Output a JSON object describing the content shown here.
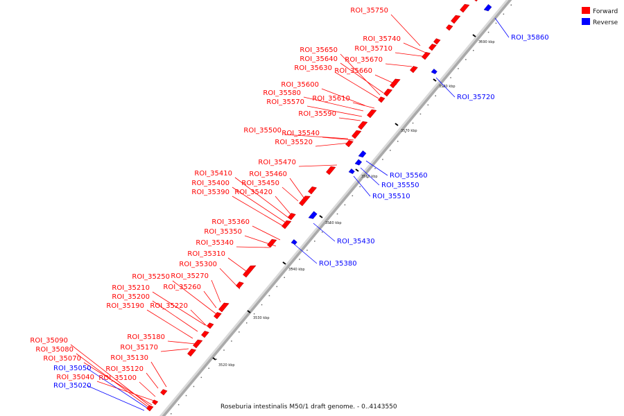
{
  "caption": "Roseburia intestinalis M50/1 draft genome. - 0..4143550",
  "legend": {
    "forward": {
      "label": "Forward",
      "color": "#ff0000"
    },
    "reverse": {
      "label": "Reverse",
      "color": "#0000ff"
    }
  },
  "ticks": [
    "3520 kbp",
    "3530 kbp",
    "3540 kbp",
    "3550 kbp",
    "3560 kbp",
    "3570 kbp",
    "3580 kbp",
    "3590 kbp"
  ],
  "forward_labels": [
    "ROI_35750",
    "ROI_35740",
    "ROI_35710",
    "ROI_35650",
    "ROI_35640",
    "ROI_35670",
    "ROI_35630",
    "ROI_35660",
    "ROI_35600",
    "ROI_35580",
    "ROI_35610",
    "ROI_35570",
    "ROI_35590",
    "ROI_35500",
    "ROI_35540",
    "ROI_35520",
    "ROI_35470",
    "ROI_35410",
    "ROI_35460",
    "ROI_35400",
    "ROI_35450",
    "ROI_35390",
    "ROI_35420",
    "ROI_35360",
    "ROI_35350",
    "ROI_35340",
    "ROI_35310",
    "ROI_35300",
    "ROI_35250",
    "ROI_35270",
    "ROI_35210",
    "ROI_35260",
    "ROI_35200",
    "ROI_35190",
    "ROI_35220",
    "ROI_35180",
    "ROI_35170",
    "ROI_35090",
    "ROI_35080",
    "ROI_35130",
    "ROI_35070",
    "ROI_35120",
    "ROI_35100",
    "ROI_35040"
  ],
  "reverse_labels": [
    "ROI_35860",
    "ROI_35720",
    "ROI_35560",
    "ROI_35550",
    "ROI_35510",
    "ROI_35430",
    "ROI_35380",
    "ROI_35050",
    "ROI_35020"
  ]
}
